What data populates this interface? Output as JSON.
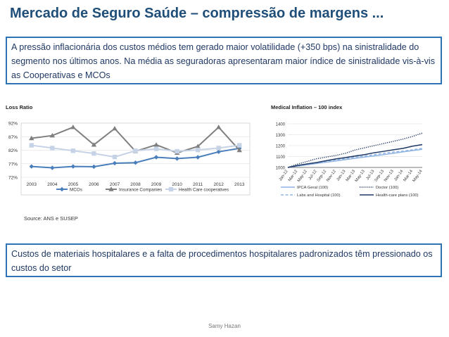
{
  "slide": {
    "title": "Mercado de Seguro Saúde – compressão de margens ...",
    "top_box": "A pressão inflacionária dos custos médios tem gerado maior volatilidade (+350 bps) na sinistralidade do segmento nos últimos anos. Na média as seguradoras apresentaram maior índice de sinistralidade vis-à-vis as Cooperativas e MCOs",
    "source": "Source:  ANS e SUSEP",
    "bottom_box": "Custos de materiais hospitalares e a falta de procedimentos hospitalares padronizados têm pressionado os custos do setor",
    "footer": "Samy Hazan"
  },
  "colors": {
    "accent": "#2e74b5",
    "title": "#1f4e79",
    "text": "#1f3864"
  },
  "chart_data": [
    {
      "type": "line",
      "title": "Loss Ratio",
      "categories": [
        "2003",
        "2004",
        "2005",
        "2006",
        "2007",
        "2008",
        "2009",
        "2010",
        "2011",
        "2012",
        "2013"
      ],
      "ylim": [
        72,
        92
      ],
      "yticks": [
        "72%",
        "77%",
        "82%",
        "87%",
        "92%"
      ],
      "ytick_values": [
        72,
        77,
        82,
        87,
        92
      ],
      "grid": true,
      "legend_position": "bottom",
      "series": [
        {
          "name": "MCOs",
          "color": "#4a7ebb",
          "marker": "diamond",
          "values": [
            76.0,
            75.5,
            76.0,
            75.9,
            77.2,
            77.4,
            79.4,
            78.9,
            79.4,
            81.4,
            82.7
          ]
        },
        {
          "name": "Insurance Companies",
          "color": "#7f7f7f",
          "marker": "triangle",
          "values": [
            86.4,
            87.4,
            90.5,
            84.0,
            90.0,
            81.6,
            84.0,
            81.0,
            83.4,
            90.5,
            82.0
          ]
        },
        {
          "name": "Health Care cooperatives",
          "color": "#c6d3e6",
          "marker": "square",
          "values": [
            83.8,
            82.8,
            81.8,
            80.8,
            79.5,
            81.8,
            82.5,
            81.6,
            82.1,
            82.8,
            83.8
          ]
        }
      ]
    },
    {
      "type": "line",
      "title": "Medical Inflation – 100 index",
      "x": [
        "Jan-12",
        "Mar-12",
        "May-12",
        "Jul-12",
        "Sep-12",
        "Nov-12",
        "Jan-13",
        "Mar-13",
        "May-13",
        "Jul-13",
        "Sep-13",
        "Nov-13",
        "Jan-14",
        "Mar-14",
        "May-14"
      ],
      "ylim": [
        1000,
        1400
      ],
      "yticks": [
        "1000",
        "1100",
        "1200",
        "1300",
        "1400"
      ],
      "ytick_values": [
        1000,
        1100,
        1200,
        1300,
        1400
      ],
      "grid": true,
      "legend_position": "bottom",
      "series": [
        {
          "name": "IPCA Geral (100)",
          "color": "#8fb4e3",
          "dash": "solid",
          "values": [
            1000,
            1012,
            1024,
            1036,
            1048,
            1060,
            1072,
            1084,
            1095,
            1106,
            1118,
            1130,
            1143,
            1155,
            1166
          ]
        },
        {
          "name": "Doctor (100)",
          "color": "#1f3864",
          "dash": "dotted",
          "values": [
            1000,
            1030,
            1055,
            1080,
            1095,
            1110,
            1130,
            1160,
            1180,
            1200,
            1220,
            1240,
            1260,
            1285,
            1315
          ]
        },
        {
          "name": "Labs and Hospital (100)",
          "color": "#8fb4e3",
          "dash": "dashed",
          "values": [
            1000,
            1015,
            1030,
            1042,
            1056,
            1070,
            1082,
            1095,
            1105,
            1117,
            1130,
            1142,
            1150,
            1162,
            1175
          ]
        },
        {
          "name": "Health-care plans (100)",
          "color": "#1f3864",
          "dash": "solid",
          "values": [
            1000,
            1018,
            1032,
            1045,
            1062,
            1078,
            1090,
            1105,
            1118,
            1135,
            1148,
            1162,
            1175,
            1195,
            1210
          ]
        }
      ]
    }
  ]
}
